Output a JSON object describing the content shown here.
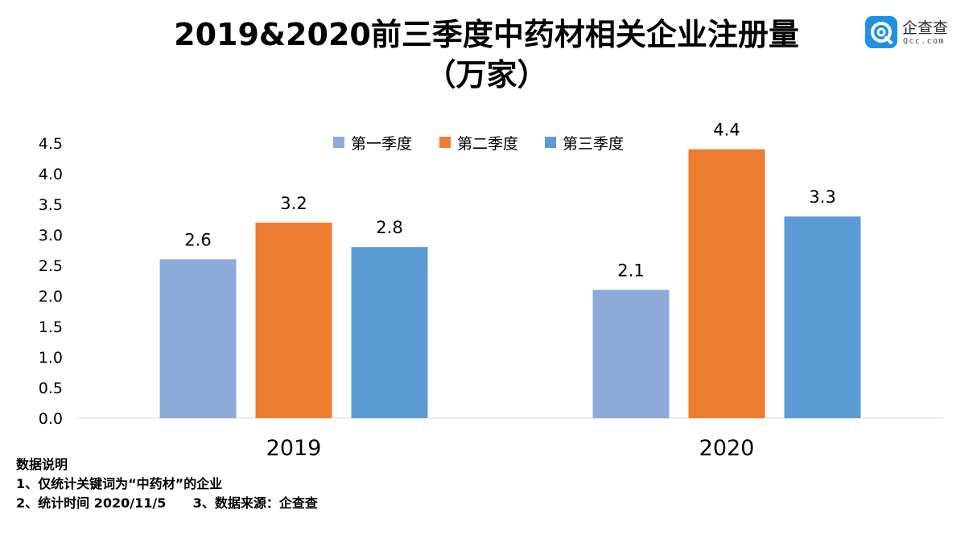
{
  "title": {
    "line1": "2019&2020前三季度中药材相关企业注册量",
    "line2": "（万家）"
  },
  "logo": {
    "icon": "qcc-logo-icon",
    "name": "企查查",
    "sub": "Qcc.com",
    "color": "#1f8fe8"
  },
  "notes": {
    "heading": "数据说明",
    "line1": "1、仅统计关键词为“中药材”的企业",
    "line2": "2、统计时间 2020/11/5      3、数据来源：企查查"
  },
  "chart_data": {
    "type": "bar",
    "categories": [
      "2019",
      "2020"
    ],
    "series": [
      {
        "name": "第一季度",
        "values": [
          2.6,
          2.1
        ],
        "color": "#8eaadb"
      },
      {
        "name": "第二季度",
        "values": [
          3.2,
          4.4
        ],
        "color": "#ed7d31"
      },
      {
        "name": "第三季度",
        "values": [
          2.8,
          3.3
        ],
        "color": "#5b9bd5"
      }
    ],
    "ylim": [
      0,
      4.5
    ],
    "yticks": [
      "0.0",
      "0.5",
      "1.0",
      "1.5",
      "2.0",
      "2.5",
      "3.0",
      "3.5",
      "4.0",
      "4.5"
    ],
    "legend_position": "top-center",
    "grid": false,
    "data_labels": true
  }
}
